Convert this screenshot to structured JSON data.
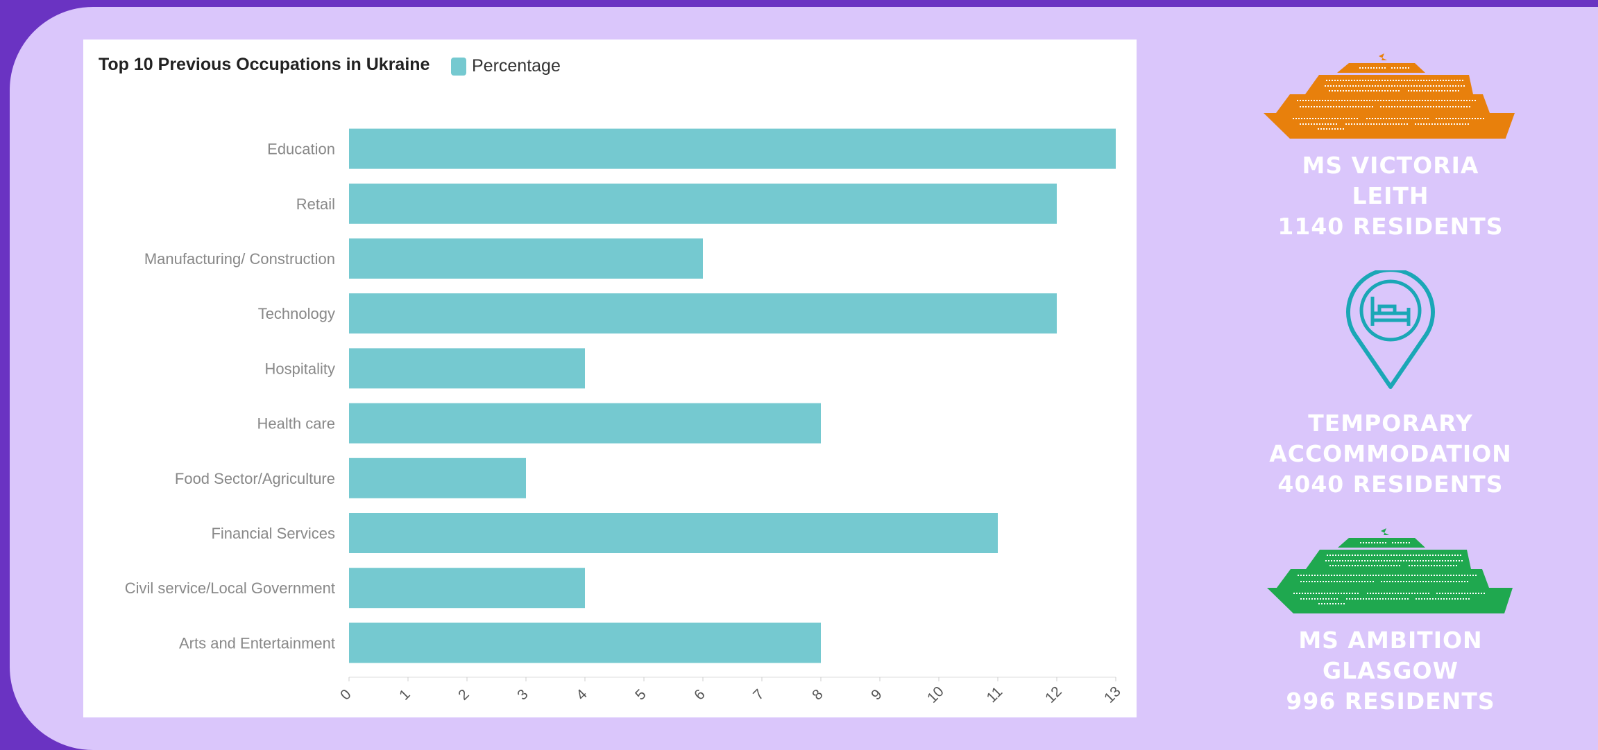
{
  "colors": {
    "page_bg": "#6a33c2",
    "stage_bg": "#dac6fb",
    "bar": "#75c9d0",
    "ship_orange": "#e8800c",
    "pin_teal": "#1aa7b6",
    "ship_green": "#1fa84f"
  },
  "chart_data": {
    "type": "bar",
    "orientation": "horizontal",
    "title": "Top 10 Previous Occupations in Ukraine",
    "categories": [
      "Education",
      "Retail",
      "Manufacturing/ Construction",
      "Technology",
      "Hospitality",
      "Health care",
      "Food Sector/Agriculture",
      "Financial Services",
      "Civil service/Local Government",
      "Arts and Entertainment"
    ],
    "series": [
      {
        "name": "Percentage",
        "values": [
          13,
          12,
          6,
          12,
          4,
          8,
          3,
          11,
          4,
          8
        ]
      }
    ],
    "xlim": [
      0,
      13
    ],
    "xticks": [
      "0",
      "1",
      "2",
      "3",
      "4",
      "5",
      "6",
      "7",
      "8",
      "9",
      "10",
      "11",
      "12",
      "13"
    ],
    "legend": "top-left",
    "grid": false
  },
  "side_panel": [
    {
      "icon": "ship-icon",
      "lines": [
        "MS VICTORIA",
        "LEITH",
        "1140 RESIDENTS"
      ]
    },
    {
      "icon": "hotel-pin-icon",
      "lines": [
        "TEMPORARY",
        "ACCOMMODATION",
        "4040 RESIDENTS"
      ]
    },
    {
      "icon": "ship-icon",
      "lines": [
        "MS AMBITION",
        "GLASGOW",
        "996 RESIDENTS"
      ]
    }
  ]
}
